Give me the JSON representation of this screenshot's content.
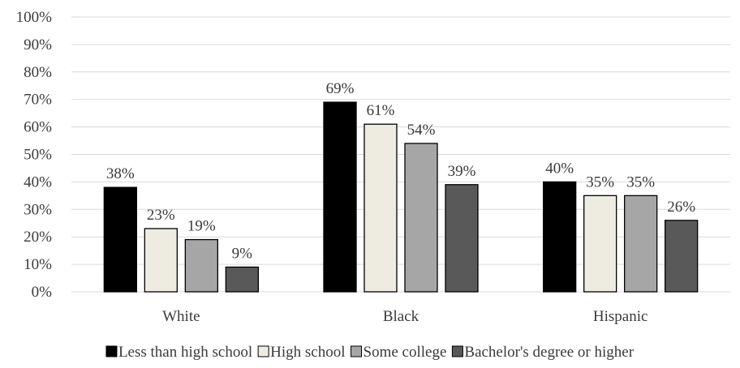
{
  "chart_data": {
    "type": "bar",
    "title": "",
    "xlabel": "",
    "ylabel": "",
    "ylim": [
      0,
      100
    ],
    "y_ticks": [
      "0%",
      "10%",
      "20%",
      "30%",
      "40%",
      "50%",
      "60%",
      "70%",
      "80%",
      "90%",
      "100%"
    ],
    "grid": true,
    "legend_position": "bottom",
    "categories": [
      "White",
      "Black",
      "Hispanic"
    ],
    "series": [
      {
        "name": "Less than high school",
        "color": "#000000",
        "values": [
          38,
          69,
          40
        ],
        "labels": [
          "38%",
          "69%",
          "40%"
        ]
      },
      {
        "name": "High school",
        "color": "#eeece1",
        "values": [
          23,
          61,
          35
        ],
        "labels": [
          "23%",
          "61%",
          "35%"
        ]
      },
      {
        "name": "Some college",
        "color": "#a6a6a6",
        "values": [
          19,
          54,
          35
        ],
        "labels": [
          "19%",
          "54%",
          "35%"
        ]
      },
      {
        "name": "Bachelor's degree or higher",
        "color": "#595959",
        "values": [
          9,
          39,
          26
        ],
        "labels": [
          "9%",
          "39%",
          "26%"
        ]
      }
    ]
  }
}
